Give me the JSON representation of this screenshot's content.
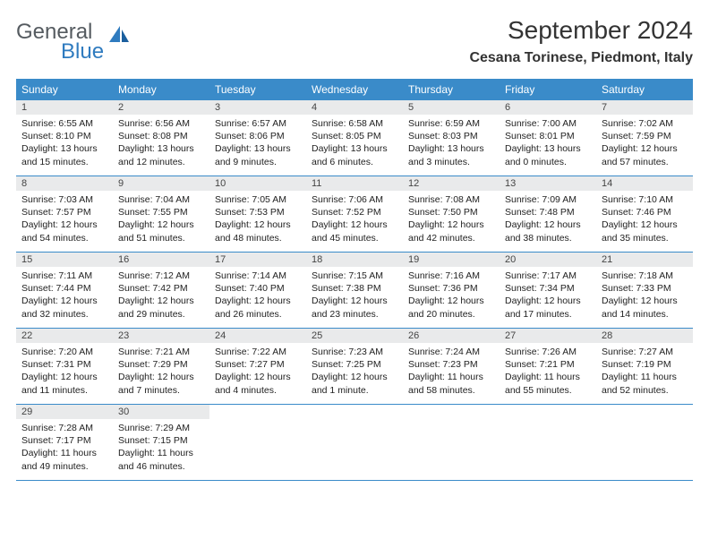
{
  "brand": {
    "line1": "General",
    "line2": "Blue"
  },
  "title": "September 2024",
  "location": "Cesana Torinese, Piedmont, Italy",
  "colors": {
    "header_bar": "#3a8bc9",
    "daynum_bg": "#e9eaeb",
    "brand_gray": "#555b60",
    "brand_blue": "#2f7bbf",
    "text": "#222222",
    "rule": "#3a8bc9",
    "page_bg": "#ffffff"
  },
  "typography": {
    "title_fontsize": 28,
    "location_fontsize": 16,
    "weekday_fontsize": 12,
    "daynum_fontsize": 11,
    "body_fontsize": 10.5,
    "font_family": "Arial"
  },
  "weekdays": [
    "Sunday",
    "Monday",
    "Tuesday",
    "Wednesday",
    "Thursday",
    "Friday",
    "Saturday"
  ],
  "weeks": [
    [
      {
        "n": "1",
        "sr": "Sunrise: 6:55 AM",
        "ss": "Sunset: 8:10 PM",
        "dl": "Daylight: 13 hours and 15 minutes."
      },
      {
        "n": "2",
        "sr": "Sunrise: 6:56 AM",
        "ss": "Sunset: 8:08 PM",
        "dl": "Daylight: 13 hours and 12 minutes."
      },
      {
        "n": "3",
        "sr": "Sunrise: 6:57 AM",
        "ss": "Sunset: 8:06 PM",
        "dl": "Daylight: 13 hours and 9 minutes."
      },
      {
        "n": "4",
        "sr": "Sunrise: 6:58 AM",
        "ss": "Sunset: 8:05 PM",
        "dl": "Daylight: 13 hours and 6 minutes."
      },
      {
        "n": "5",
        "sr": "Sunrise: 6:59 AM",
        "ss": "Sunset: 8:03 PM",
        "dl": "Daylight: 13 hours and 3 minutes."
      },
      {
        "n": "6",
        "sr": "Sunrise: 7:00 AM",
        "ss": "Sunset: 8:01 PM",
        "dl": "Daylight: 13 hours and 0 minutes."
      },
      {
        "n": "7",
        "sr": "Sunrise: 7:02 AM",
        "ss": "Sunset: 7:59 PM",
        "dl": "Daylight: 12 hours and 57 minutes."
      }
    ],
    [
      {
        "n": "8",
        "sr": "Sunrise: 7:03 AM",
        "ss": "Sunset: 7:57 PM",
        "dl": "Daylight: 12 hours and 54 minutes."
      },
      {
        "n": "9",
        "sr": "Sunrise: 7:04 AM",
        "ss": "Sunset: 7:55 PM",
        "dl": "Daylight: 12 hours and 51 minutes."
      },
      {
        "n": "10",
        "sr": "Sunrise: 7:05 AM",
        "ss": "Sunset: 7:53 PM",
        "dl": "Daylight: 12 hours and 48 minutes."
      },
      {
        "n": "11",
        "sr": "Sunrise: 7:06 AM",
        "ss": "Sunset: 7:52 PM",
        "dl": "Daylight: 12 hours and 45 minutes."
      },
      {
        "n": "12",
        "sr": "Sunrise: 7:08 AM",
        "ss": "Sunset: 7:50 PM",
        "dl": "Daylight: 12 hours and 42 minutes."
      },
      {
        "n": "13",
        "sr": "Sunrise: 7:09 AM",
        "ss": "Sunset: 7:48 PM",
        "dl": "Daylight: 12 hours and 38 minutes."
      },
      {
        "n": "14",
        "sr": "Sunrise: 7:10 AM",
        "ss": "Sunset: 7:46 PM",
        "dl": "Daylight: 12 hours and 35 minutes."
      }
    ],
    [
      {
        "n": "15",
        "sr": "Sunrise: 7:11 AM",
        "ss": "Sunset: 7:44 PM",
        "dl": "Daylight: 12 hours and 32 minutes."
      },
      {
        "n": "16",
        "sr": "Sunrise: 7:12 AM",
        "ss": "Sunset: 7:42 PM",
        "dl": "Daylight: 12 hours and 29 minutes."
      },
      {
        "n": "17",
        "sr": "Sunrise: 7:14 AM",
        "ss": "Sunset: 7:40 PM",
        "dl": "Daylight: 12 hours and 26 minutes."
      },
      {
        "n": "18",
        "sr": "Sunrise: 7:15 AM",
        "ss": "Sunset: 7:38 PM",
        "dl": "Daylight: 12 hours and 23 minutes."
      },
      {
        "n": "19",
        "sr": "Sunrise: 7:16 AM",
        "ss": "Sunset: 7:36 PM",
        "dl": "Daylight: 12 hours and 20 minutes."
      },
      {
        "n": "20",
        "sr": "Sunrise: 7:17 AM",
        "ss": "Sunset: 7:34 PM",
        "dl": "Daylight: 12 hours and 17 minutes."
      },
      {
        "n": "21",
        "sr": "Sunrise: 7:18 AM",
        "ss": "Sunset: 7:33 PM",
        "dl": "Daylight: 12 hours and 14 minutes."
      }
    ],
    [
      {
        "n": "22",
        "sr": "Sunrise: 7:20 AM",
        "ss": "Sunset: 7:31 PM",
        "dl": "Daylight: 12 hours and 11 minutes."
      },
      {
        "n": "23",
        "sr": "Sunrise: 7:21 AM",
        "ss": "Sunset: 7:29 PM",
        "dl": "Daylight: 12 hours and 7 minutes."
      },
      {
        "n": "24",
        "sr": "Sunrise: 7:22 AM",
        "ss": "Sunset: 7:27 PM",
        "dl": "Daylight: 12 hours and 4 minutes."
      },
      {
        "n": "25",
        "sr": "Sunrise: 7:23 AM",
        "ss": "Sunset: 7:25 PM",
        "dl": "Daylight: 12 hours and 1 minute."
      },
      {
        "n": "26",
        "sr": "Sunrise: 7:24 AM",
        "ss": "Sunset: 7:23 PM",
        "dl": "Daylight: 11 hours and 58 minutes."
      },
      {
        "n": "27",
        "sr": "Sunrise: 7:26 AM",
        "ss": "Sunset: 7:21 PM",
        "dl": "Daylight: 11 hours and 55 minutes."
      },
      {
        "n": "28",
        "sr": "Sunrise: 7:27 AM",
        "ss": "Sunset: 7:19 PM",
        "dl": "Daylight: 11 hours and 52 minutes."
      }
    ],
    [
      {
        "n": "29",
        "sr": "Sunrise: 7:28 AM",
        "ss": "Sunset: 7:17 PM",
        "dl": "Daylight: 11 hours and 49 minutes."
      },
      {
        "n": "30",
        "sr": "Sunrise: 7:29 AM",
        "ss": "Sunset: 7:15 PM",
        "dl": "Daylight: 11 hours and 46 minutes."
      },
      {
        "empty": true
      },
      {
        "empty": true
      },
      {
        "empty": true
      },
      {
        "empty": true
      },
      {
        "empty": true
      }
    ]
  ]
}
